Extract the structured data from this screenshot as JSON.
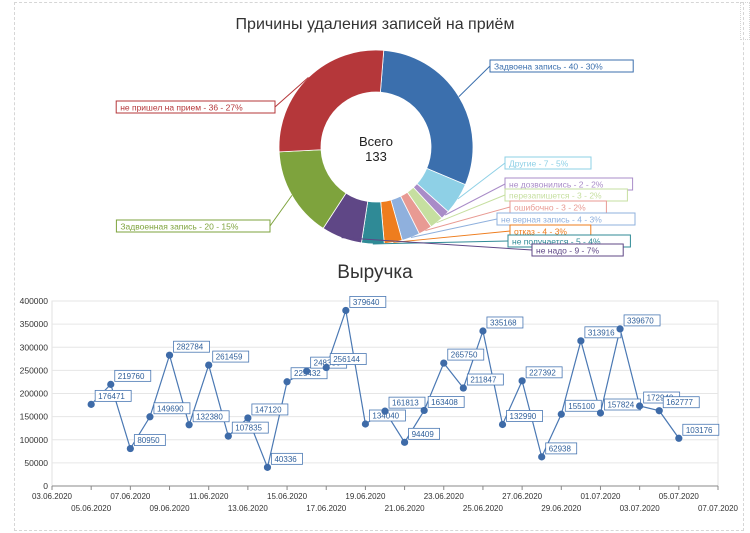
{
  "chart_data": [
    {
      "type": "pie",
      "title": "Причины удаления записей на приём",
      "center_label": "Всего",
      "total": "133",
      "slices": [
        {
          "label": "Задвоена запись - 40 - 30%",
          "value": 40,
          "color": "#3b6fad"
        },
        {
          "label": "Другие - 7 - 5%",
          "value": 7,
          "color": "#8ed0e6"
        },
        {
          "label": "не дозвонились - 2 - 2%",
          "value": 2,
          "color": "#a98cc8"
        },
        {
          "label": "перезапишется - 3 - 2%",
          "value": 3,
          "color": "#c6dfa0"
        },
        {
          "label": "ошибочно - 3 - 2%",
          "value": 3,
          "color": "#e89a93"
        },
        {
          "label": "не верная запись - 4 - 3%",
          "value": 4,
          "color": "#8fb0dd"
        },
        {
          "label": "отказ - 4 - 3%",
          "value": 4,
          "color": "#ee7d1e"
        },
        {
          "label": "не получается - 5 - 4%",
          "value": 5,
          "color": "#2f8a96"
        },
        {
          "label": "не надо - 9 - 7%",
          "value": 9,
          "color": "#5f4786"
        },
        {
          "label": "Задвоенная запись - 20 - 15%",
          "value": 20,
          "color": "#7ea33d"
        },
        {
          "label": "не пришел на прием - 36 - 27%",
          "value": 36,
          "color": "#b5373a"
        }
      ]
    },
    {
      "type": "line",
      "title": "Выручка",
      "ylim": [
        0,
        400000
      ],
      "yticks": [
        "0",
        "50000",
        "100000",
        "150000",
        "200000",
        "250000",
        "300000",
        "350000",
        "400000"
      ],
      "xlim": [
        "03.06.2020",
        "07.07.2020"
      ],
      "xticks": [
        "03.06.2020",
        "05.06.2020",
        "07.06.2020",
        "09.06.2020",
        "11.06.2020",
        "13.06.2020",
        "15.06.2020",
        "17.06.2020",
        "19.06.2020",
        "21.06.2020",
        "23.06.2020",
        "25.06.2020",
        "27.06.2020",
        "29.06.2020",
        "01.07.2020",
        "03.07.2020",
        "05.07.2020",
        "07.07.2020"
      ],
      "series": [
        {
          "color": "#4a78b3",
          "points": [
            {
              "x": "05.06.2020",
              "y": 176471
            },
            {
              "x": "06.06.2020",
              "y": 219760
            },
            {
              "x": "07.06.2020",
              "y": 80950
            },
            {
              "x": "08.06.2020",
              "y": 149690
            },
            {
              "x": "09.06.2020",
              "y": 282784
            },
            {
              "x": "10.06.2020",
              "y": 132380
            },
            {
              "x": "11.06.2020",
              "y": 261459
            },
            {
              "x": "12.06.2020",
              "y": 107835
            },
            {
              "x": "13.06.2020",
              "y": 147120
            },
            {
              "x": "14.06.2020",
              "y": 40336
            },
            {
              "x": "15.06.2020",
              "y": 225432
            },
            {
              "x": "16.06.2020",
              "y": 248336
            },
            {
              "x": "17.06.2020",
              "y": 256144
            },
            {
              "x": "18.06.2020",
              "y": 379640
            },
            {
              "x": "19.06.2020",
              "y": 134040
            },
            {
              "x": "20.06.2020",
              "y": 161813
            },
            {
              "x": "21.06.2020",
              "y": 94409
            },
            {
              "x": "22.06.2020",
              "y": 163408
            },
            {
              "x": "23.06.2020",
              "y": 265750
            },
            {
              "x": "24.06.2020",
              "y": 211847
            },
            {
              "x": "25.06.2020",
              "y": 335168
            },
            {
              "x": "26.06.2020",
              "y": 132990
            },
            {
              "x": "27.06.2020",
              "y": 227392
            },
            {
              "x": "28.06.2020",
              "y": 62938
            },
            {
              "x": "29.06.2020",
              "y": 155100
            },
            {
              "x": "30.06.2020",
              "y": 313916
            },
            {
              "x": "01.07.2020",
              "y": 157824
            },
            {
              "x": "02.07.2020",
              "y": 339670
            },
            {
              "x": "03.07.2020",
              "y": 172940
            },
            {
              "x": "04.07.2020",
              "y": 162777
            },
            {
              "x": "05.07.2020",
              "y": 103176
            }
          ]
        }
      ],
      "grid": true,
      "legend": "none"
    }
  ]
}
